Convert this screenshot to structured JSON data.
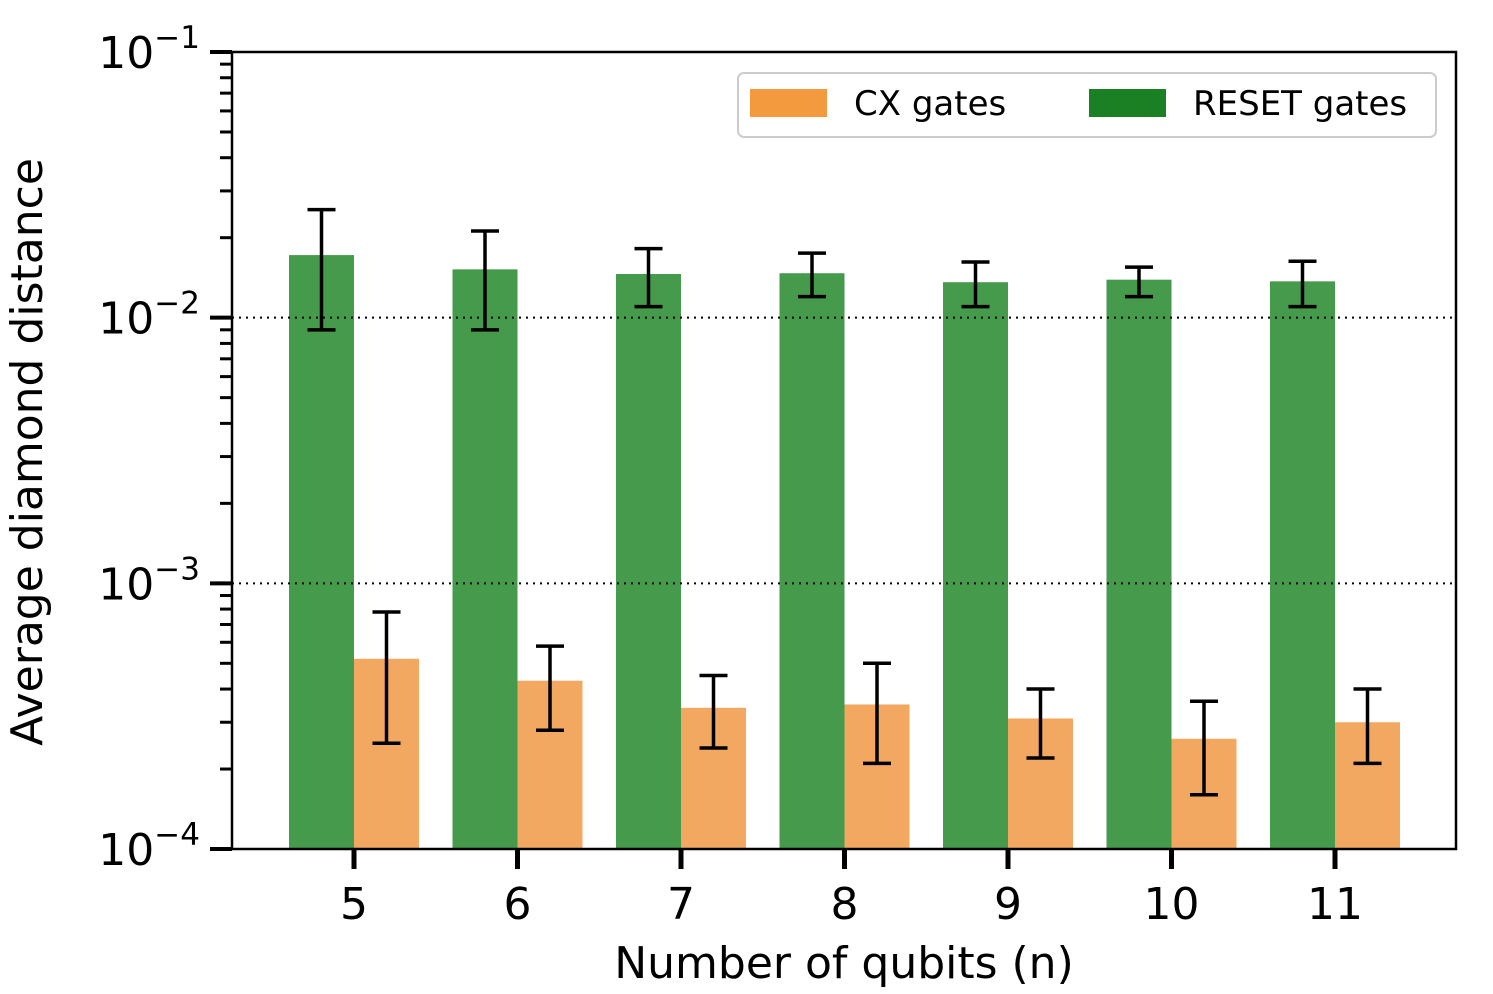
{
  "chart_data": {
    "type": "bar",
    "yscale": "log",
    "categories": [
      "5",
      "6",
      "7",
      "8",
      "9",
      "10",
      "11"
    ],
    "series": [
      {
        "name": "RESET gates",
        "color": "#469a4b",
        "legend_color": "#1b7f24",
        "values": [
          0.0172,
          0.0152,
          0.0146,
          0.0147,
          0.0136,
          0.0139,
          0.0137
        ],
        "err_low": [
          0.009,
          0.009,
          0.011,
          0.012,
          0.011,
          0.012,
          0.011
        ],
        "err_high": [
          0.0255,
          0.0212,
          0.0182,
          0.0175,
          0.0162,
          0.0155,
          0.0163
        ]
      },
      {
        "name": "CX gates",
        "color": "#f3a862",
        "legend_color": "#f39a3f",
        "values": [
          0.00052,
          0.00043,
          0.00034,
          0.00035,
          0.00031,
          0.00026,
          0.0003
        ],
        "err_low": [
          0.00025,
          0.00028,
          0.00024,
          0.00021,
          0.00022,
          0.00016,
          0.00021
        ],
        "err_high": [
          0.00078,
          0.00058,
          0.00045,
          0.0005,
          0.0004,
          0.00036,
          0.0004
        ]
      }
    ],
    "xlabel": "Number of qubits (n)",
    "ylabel": "Average diamond distance",
    "ylim": [
      0.0001,
      0.1
    ],
    "ytick_labels": [
      {
        "base": "10",
        "exp": "−4",
        "value": 0.0001
      },
      {
        "base": "10",
        "exp": "−3",
        "value": 0.001
      },
      {
        "base": "10",
        "exp": "−2",
        "value": 0.01
      },
      {
        "base": "10",
        "exp": "−1",
        "value": 0.1
      }
    ],
    "reference_lines": [
      0.001,
      0.01
    ],
    "legend": {
      "location": "top-right",
      "order": [
        "CX gates",
        "RESET gates"
      ]
    }
  }
}
